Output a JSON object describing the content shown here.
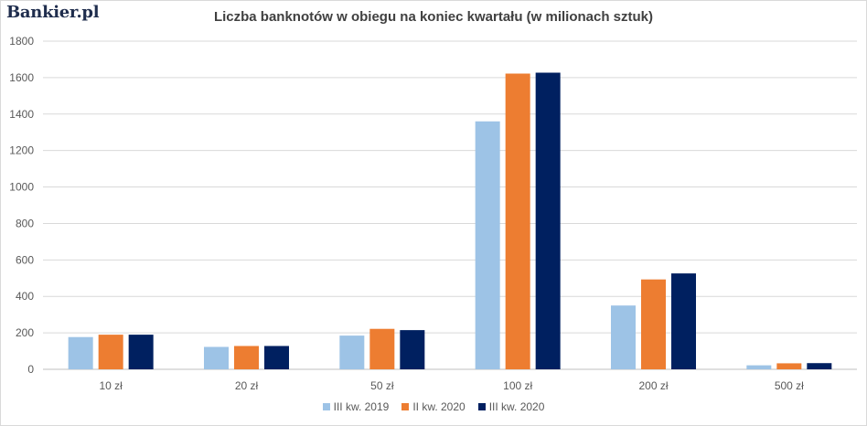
{
  "brand": {
    "logo_text": "Bankier.pl"
  },
  "chart_data": {
    "type": "bar",
    "title": "Liczba banknotów  w obiegu na koniec kwartału (w milionach  sztuk)",
    "categories": [
      "10 zł",
      "20 zł",
      "50 zł",
      "100 zł",
      "200 zł",
      "500 zł"
    ],
    "series": [
      {
        "name": "III kw. 2019",
        "color": "#9dc3e6",
        "values": [
          177,
          123,
          185,
          1360,
          350,
          22
        ]
      },
      {
        "name": "II kw. 2020",
        "color": "#ed7d31",
        "values": [
          190,
          128,
          222,
          1622,
          493,
          33
        ]
      },
      {
        "name": "III kw. 2020",
        "color": "#002060",
        "values": [
          190,
          128,
          215,
          1627,
          526,
          34
        ]
      }
    ],
    "yticks": [
      "0",
      "200",
      "400",
      "600",
      "800",
      "1000",
      "1200",
      "1400",
      "1600",
      "1800"
    ],
    "ylim": [
      0,
      1800
    ],
    "grid": true,
    "legend_position": "bottom"
  }
}
